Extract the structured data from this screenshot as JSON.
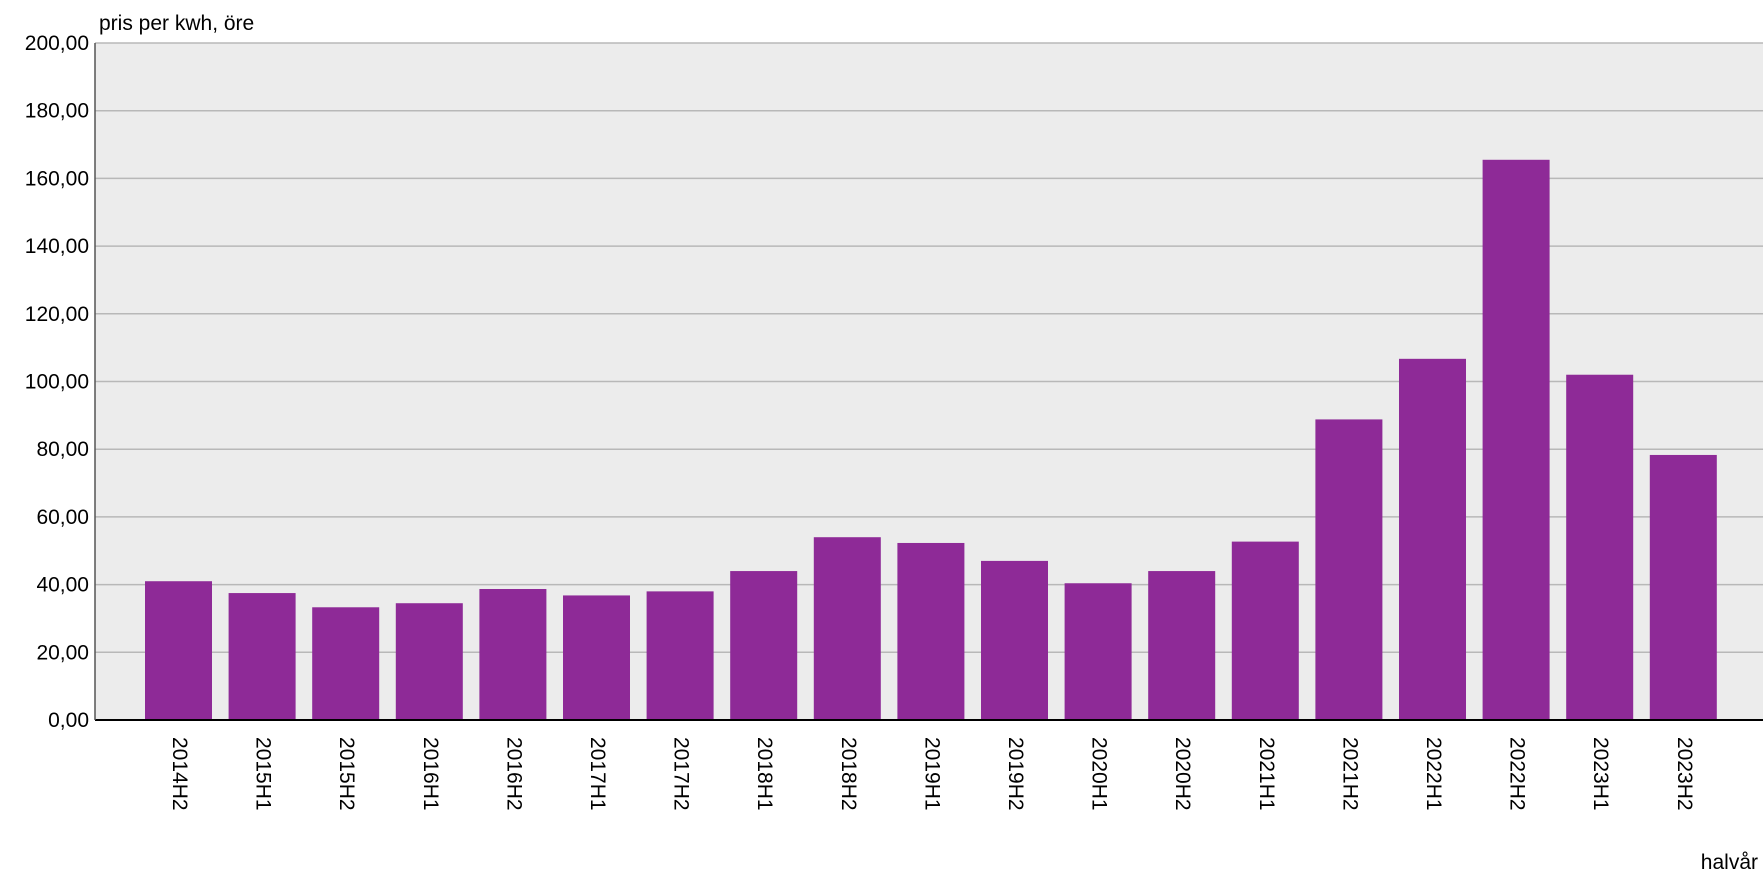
{
  "chart_data": {
    "type": "bar",
    "title": "",
    "ylabel": "pris per kwh, öre",
    "xlabel": "halvår",
    "ylim": [
      0,
      200
    ],
    "yticks": [
      "0,00",
      "20,00",
      "40,00",
      "60,00",
      "80,00",
      "100,00",
      "120,00",
      "140,00",
      "160,00",
      "180,00",
      "200,00"
    ],
    "grid": true,
    "legend": "none",
    "categories": [
      "2014H2",
      "2015H1",
      "2015H2",
      "2016H1",
      "2016H2",
      "2017H1",
      "2017H2",
      "2018H1",
      "2018H2",
      "2019H1",
      "2019H2",
      "2020H1",
      "2020H2",
      "2021H1",
      "2021H2",
      "2022H1",
      "2022H2",
      "2023H1",
      "2023H2"
    ],
    "series": [
      {
        "values": [
          41,
          37.5,
          33.3,
          34.5,
          38.7,
          36.8,
          38,
          44,
          54,
          52.3,
          47,
          40.4,
          44,
          52.7,
          88.8,
          106.7,
          165.5,
          102,
          78.3
        ],
        "color": "#8e2a97"
      }
    ],
    "background_color": "#ececec",
    "grid_color": "#b8b8b8"
  }
}
